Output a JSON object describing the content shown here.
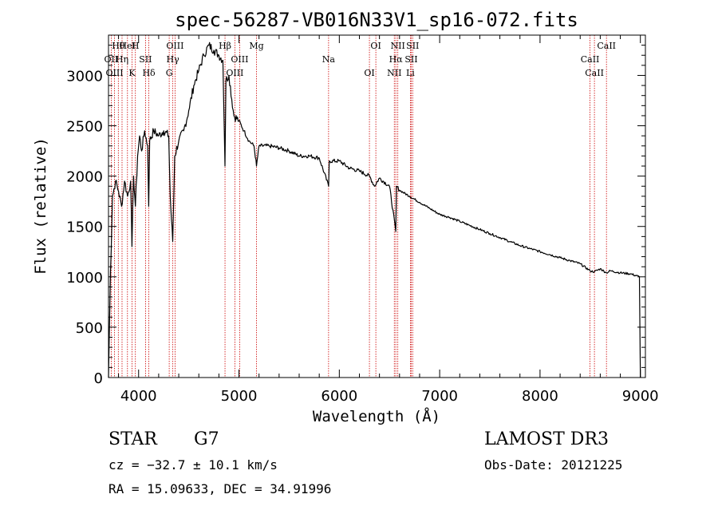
{
  "chart_data": {
    "type": "line",
    "title": "spec-56287-VB016N33V1_sp16-072.fits",
    "xlabel": "Wavelength (Å)",
    "ylabel": "Flux (relative)",
    "xlim": [
      3700,
      9050
    ],
    "ylim": [
      0,
      3400
    ],
    "xticks": [
      4000,
      5000,
      6000,
      7000,
      8000,
      9000
    ],
    "xtick_labels": [
      "4000",
      "5000",
      "6000",
      "7000",
      "8000",
      "9000"
    ],
    "yticks": [
      0,
      500,
      1000,
      1500,
      2000,
      2500,
      3000
    ],
    "ytick_labels": [
      "0",
      "500",
      "1000",
      "1500",
      "2000",
      "2500",
      "3000"
    ],
    "grid": false,
    "spectrum": {
      "name": "flux",
      "x": [
        3700,
        3720,
        3740,
        3770,
        3800,
        3830,
        3860,
        3890,
        3920,
        3934,
        3950,
        3968,
        3990,
        4010,
        4030,
        4060,
        4090,
        4101,
        4110,
        4150,
        4200,
        4250,
        4300,
        4315,
        4340,
        4360,
        4400,
        4450,
        4500,
        4550,
        4600,
        4650,
        4700,
        4750,
        4800,
        4840,
        4861,
        4870,
        4900,
        4950,
        5000,
        5050,
        5100,
        5150,
        5175,
        5200,
        5300,
        5400,
        5500,
        5600,
        5700,
        5800,
        5893,
        5900,
        6000,
        6100,
        6200,
        6300,
        6350,
        6400,
        6500,
        6563,
        6570,
        6600,
        6700,
        6800,
        6900,
        7000,
        7100,
        7200,
        7300,
        7400,
        7500,
        7600,
        7700,
        7800,
        7900,
        8000,
        8100,
        8200,
        8300,
        8400,
        8498,
        8542,
        8600,
        8662,
        8700,
        8800,
        8900,
        8990,
        9000
      ],
      "y": [
        0,
        1050,
        1800,
        1950,
        1850,
        1700,
        1950,
        1800,
        1950,
        1300,
        2000,
        1700,
        2200,
        2400,
        2250,
        2450,
        2300,
        1700,
        2350,
        2450,
        2400,
        2450,
        2400,
        1800,
        1350,
        2200,
        2350,
        2450,
        2650,
        2900,
        3050,
        3200,
        3300,
        3250,
        3200,
        3150,
        2100,
        2950,
        3000,
        2600,
        2550,
        2450,
        2350,
        2300,
        2100,
        2300,
        2300,
        2280,
        2250,
        2200,
        2200,
        2180,
        1900,
        2150,
        2150,
        2080,
        2050,
        2000,
        1900,
        1980,
        1900,
        1450,
        1900,
        1860,
        1800,
        1740,
        1680,
        1620,
        1590,
        1550,
        1510,
        1470,
        1430,
        1390,
        1350,
        1310,
        1280,
        1250,
        1220,
        1190,
        1160,
        1130,
        1060,
        1050,
        1080,
        1040,
        1060,
        1040,
        1030,
        1000,
        0
      ]
    },
    "lines": [
      {
        "label": "Hθ",
        "wave": 3798
      },
      {
        "label": "OII",
        "wave": 3727
      },
      {
        "label": "OIII",
        "wave": 3760
      },
      {
        "label": "HeI",
        "wave": 3889
      },
      {
        "label": "Hη",
        "wave": 3835
      },
      {
        "label": "K",
        "wave": 3934
      },
      {
        "label": "H",
        "wave": 3968
      },
      {
        "label": "SII",
        "wave": 4069
      },
      {
        "label": "Hδ",
        "wave": 4102
      },
      {
        "label": "OIII",
        "wave": 4363
      },
      {
        "label": "Hγ",
        "wave": 4341
      },
      {
        "label": "G",
        "wave": 4305
      },
      {
        "label": "Hβ",
        "wave": 4861
      },
      {
        "label": "OIII",
        "wave": 5007
      },
      {
        "label": "OIII",
        "wave": 4959
      },
      {
        "label": "Mg",
        "wave": 5175
      },
      {
        "label": "Na",
        "wave": 5893
      },
      {
        "label": "OI",
        "wave": 6300
      },
      {
        "label": "OI",
        "wave": 6364
      },
      {
        "label": "Hα",
        "wave": 6563
      },
      {
        "label": "NII",
        "wave": 6548
      },
      {
        "label": "NII",
        "wave": 6583
      },
      {
        "label": "SII",
        "wave": 6717
      },
      {
        "label": "Li",
        "wave": 6708
      },
      {
        "label": "SII",
        "wave": 6731
      },
      {
        "label": "CaII",
        "wave": 8498
      },
      {
        "label": "CaII",
        "wave": 8542
      },
      {
        "label": "CaII",
        "wave": 8662
      }
    ],
    "line_color": "#cc0000"
  },
  "info": {
    "object_class": "STAR",
    "subclass": "G7",
    "cz": "cz = −32.7 ± 10.1 km/s",
    "radec": "RA =  15.09633, DEC =  34.91996",
    "survey": "LAMOST DR3",
    "obs_date": "Obs-Date: 20121225"
  }
}
